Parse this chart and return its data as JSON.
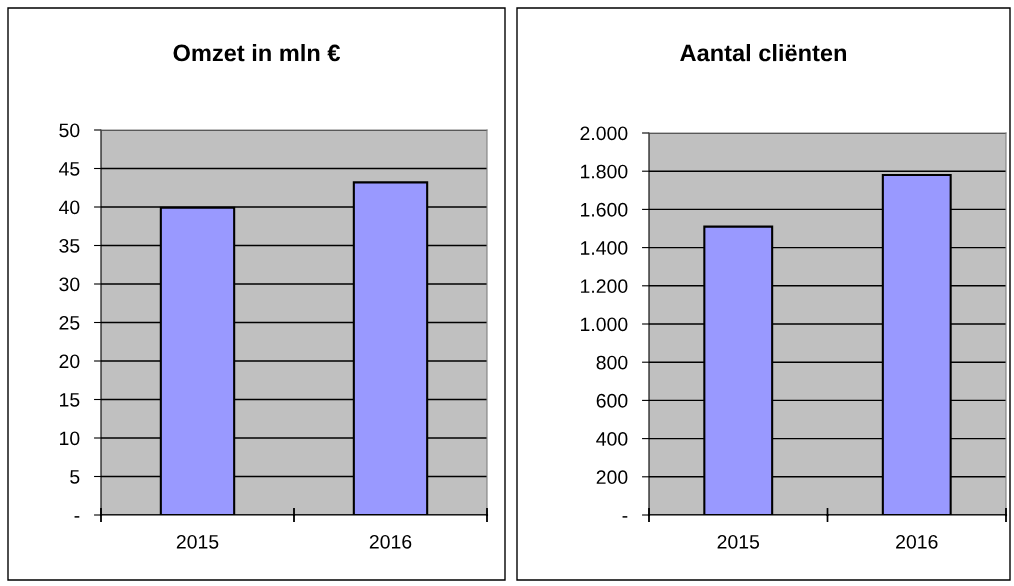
{
  "chart_data": [
    {
      "type": "bar",
      "title": "Omzet in mln €",
      "categories": [
        "2015",
        "2016"
      ],
      "values": [
        39.9,
        43.2
      ],
      "color": "#9999ff",
      "ylim": [
        0,
        50
      ],
      "yticks": [
        {
          "value": 0,
          "label": "-"
        },
        5,
        10,
        15,
        20,
        25,
        30,
        35,
        40,
        45,
        50
      ],
      "grid": "y"
    },
    {
      "type": "bar",
      "title": "Aantal cliënten",
      "categories": [
        "2015",
        "2016"
      ],
      "values": [
        1510,
        1780
      ],
      "color": "#9999ff",
      "ylim": [
        0,
        2000
      ],
      "yticks": [
        {
          "value": 0,
          "label": "-"
        },
        {
          "value": 200,
          "label": "200"
        },
        {
          "value": 400,
          "label": "400"
        },
        {
          "value": 600,
          "label": "600"
        },
        {
          "value": 800,
          "label": "800"
        },
        {
          "value": 1000,
          "label": "1.000"
        },
        {
          "value": 1200,
          "label": "1.200"
        },
        {
          "value": 1400,
          "label": "1.400"
        },
        {
          "value": 1600,
          "label": "1.600"
        },
        {
          "value": 1800,
          "label": "1.800"
        },
        {
          "value": 2000,
          "label": "2.000"
        }
      ],
      "grid": "y"
    }
  ]
}
